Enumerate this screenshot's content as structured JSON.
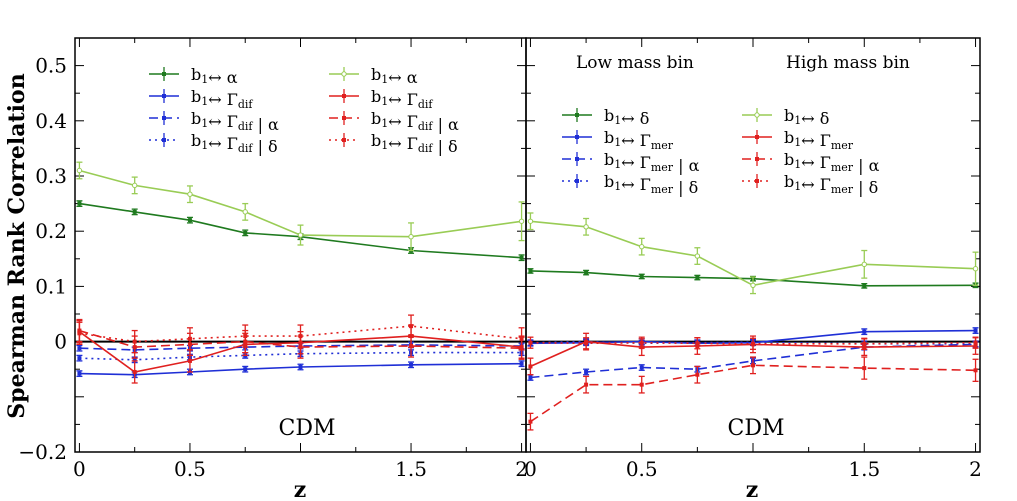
{
  "chart_data": {
    "type": "line",
    "ylabel": "Spearman Rank Correlation",
    "xlabel": "z",
    "ylim": [
      -0.2,
      0.55
    ],
    "xlim": [
      -0.02,
      2.02
    ],
    "y_ticks": [
      {
        "value": 0.5,
        "label": "0.5"
      },
      {
        "value": 0.4,
        "label": "0.4"
      },
      {
        "value": 0.3,
        "label": "0.3"
      },
      {
        "value": 0.2,
        "label": "0.2"
      },
      {
        "value": 0.1,
        "label": "0.1"
      },
      {
        "value": 0,
        "label": "0"
      },
      {
        "value": -0.2,
        "label": "−0.2"
      }
    ],
    "x_ticks": [
      {
        "value": 0,
        "label": "0"
      },
      {
        "value": 0.5,
        "label": "0.5"
      },
      {
        "value": 1.5,
        "label": "1.5"
      },
      {
        "value": 2,
        "label": "2"
      }
    ],
    "x": [
      0,
      0.25,
      0.5,
      0.75,
      1.0,
      1.5,
      2.0
    ],
    "colors": {
      "dark_green": "#1f7a1f",
      "light_green": "#99cc55",
      "blue": "#1f2fd6",
      "red": "#e0201f"
    },
    "panels": [
      {
        "note": "CDM",
        "mass_labels": [],
        "series": [
          {
            "label_main": "b",
            "label_sub": "1",
            "label_rest": "↔ α",
            "label_sub2": "",
            "label_tail": "",
            "color": "dark_green",
            "dash": "solid",
            "marker": "square",
            "legend_col": 0,
            "legend_row": 0,
            "values": [
              0.25,
              0.235,
              0.22,
              0.197,
              0.19,
              0.165,
              0.152
            ],
            "err": [
              0.005,
              0.005,
              0.005,
              0.005,
              0.005,
              0.005,
              0.005
            ]
          },
          {
            "label_main": "b",
            "label_sub": "1",
            "label_rest": "↔ Γ",
            "label_sub2": "dif",
            "label_tail": "",
            "color": "blue",
            "dash": "solid",
            "marker": "square",
            "legend_col": 0,
            "legend_row": 1,
            "values": [
              -0.058,
              -0.06,
              -0.055,
              -0.05,
              -0.046,
              -0.042,
              -0.04
            ],
            "err": [
              0.005,
              0.005,
              0.005,
              0.005,
              0.005,
              0.005,
              0.005
            ]
          },
          {
            "label_main": "b",
            "label_sub": "1",
            "label_rest": "↔ Γ",
            "label_sub2": "dif",
            "label_tail": "| α",
            "color": "blue",
            "dash": "dashed",
            "marker": "square",
            "legend_col": 0,
            "legend_row": 2,
            "values": [
              -0.012,
              -0.015,
              -0.012,
              -0.01,
              -0.008,
              -0.006,
              -0.008
            ],
            "err": [
              0.005,
              0.005,
              0.005,
              0.005,
              0.005,
              0.005,
              0.005
            ]
          },
          {
            "label_main": "b",
            "label_sub": "1",
            "label_rest": "↔ Γ",
            "label_sub2": "dif",
            "label_tail": "| δ",
            "color": "blue",
            "dash": "dotted",
            "marker": "square",
            "legend_col": 0,
            "legend_row": 3,
            "values": [
              -0.03,
              -0.033,
              -0.028,
              -0.025,
              -0.022,
              -0.02,
              -0.02
            ],
            "err": [
              0.005,
              0.005,
              0.005,
              0.005,
              0.005,
              0.005,
              0.005
            ]
          },
          {
            "label_main": "b",
            "label_sub": "1",
            "label_rest": "↔ α",
            "label_sub2": "",
            "label_tail": "",
            "color": "light_green",
            "dash": "solid",
            "marker": "circle",
            "legend_col": 1,
            "legend_row": 0,
            "values": [
              0.31,
              0.283,
              0.267,
              0.235,
              0.193,
              0.19,
              0.218
            ],
            "err": [
              0.015,
              0.015,
              0.015,
              0.015,
              0.018,
              0.025,
              0.035
            ]
          },
          {
            "label_main": "b",
            "label_sub": "1",
            "label_rest": "↔ Γ",
            "label_sub2": "dif",
            "label_tail": "",
            "color": "red",
            "dash": "solid",
            "marker": "square",
            "legend_col": 1,
            "legend_row": 1,
            "values": [
              0.018,
              -0.055,
              -0.035,
              -0.005,
              -0.002,
              0.01,
              -0.01
            ],
            "err": [
              0.02,
              0.02,
              0.02,
              0.02,
              0.02,
              0.02,
              0.02
            ]
          },
          {
            "label_main": "b",
            "label_sub": "1",
            "label_rest": "↔ Γ",
            "label_sub2": "dif",
            "label_tail": "| α",
            "color": "red",
            "dash": "dashed",
            "marker": "square",
            "legend_col": 1,
            "legend_row": 2,
            "values": [
              0.02,
              -0.01,
              -0.005,
              0.0,
              -0.01,
              -0.008,
              -0.012
            ],
            "err": [
              0.02,
              0.02,
              0.02,
              0.02,
              0.02,
              0.02,
              0.02
            ]
          },
          {
            "label_main": "b",
            "label_sub": "1",
            "label_rest": "↔ Γ",
            "label_sub2": "dif",
            "label_tail": "| δ",
            "color": "red",
            "dash": "dotted",
            "marker": "square",
            "legend_col": 1,
            "legend_row": 3,
            "values": [
              0.015,
              0.0,
              0.005,
              0.01,
              0.01,
              0.028,
              0.005
            ],
            "err": [
              0.02,
              0.02,
              0.02,
              0.02,
              0.02,
              0.02,
              0.02
            ]
          }
        ]
      },
      {
        "note": "CDM",
        "mass_labels": [
          "Low mass bin",
          "High mass bin"
        ],
        "series": [
          {
            "label_main": "b",
            "label_sub": "1",
            "label_rest": "↔ δ",
            "label_sub2": "",
            "label_tail": "",
            "color": "dark_green",
            "dash": "solid",
            "marker": "square",
            "legend_col": 0,
            "legend_row": 0,
            "values": [
              0.128,
              0.125,
              0.118,
              0.116,
              0.114,
              0.101,
              0.102
            ],
            "err": [
              0.004,
              0.004,
              0.004,
              0.004,
              0.004,
              0.004,
              0.004
            ]
          },
          {
            "label_main": "b",
            "label_sub": "1",
            "label_rest": "↔ Γ",
            "label_sub2": "mer",
            "label_tail": "",
            "color": "blue",
            "dash": "solid",
            "marker": "square",
            "legend_col": 0,
            "legend_row": 1,
            "values": [
              -0.003,
              -0.002,
              0.0,
              -0.003,
              -0.002,
              0.018,
              0.02
            ],
            "err": [
              0.005,
              0.005,
              0.005,
              0.005,
              0.005,
              0.005,
              0.005
            ]
          },
          {
            "label_main": "b",
            "label_sub": "1",
            "label_rest": "↔ Γ",
            "label_sub2": "mer",
            "label_tail": "| α",
            "color": "blue",
            "dash": "dashed",
            "marker": "square",
            "legend_col": 0,
            "legend_row": 2,
            "values": [
              -0.065,
              -0.055,
              -0.047,
              -0.05,
              -0.035,
              -0.01,
              -0.005
            ],
            "err": [
              0.005,
              0.005,
              0.005,
              0.005,
              0.005,
              0.005,
              0.005
            ]
          },
          {
            "label_main": "b",
            "label_sub": "1",
            "label_rest": "↔ Γ",
            "label_sub2": "mer",
            "label_tail": "| δ",
            "color": "blue",
            "dash": "dotted",
            "marker": "square",
            "legend_col": 0,
            "legend_row": 3,
            "values": [
              -0.002,
              0.0,
              -0.003,
              -0.002,
              -0.001,
              -0.004,
              -0.004
            ],
            "err": [
              0.005,
              0.005,
              0.005,
              0.005,
              0.005,
              0.005,
              0.005
            ]
          },
          {
            "label_main": "b",
            "label_sub": "1",
            "label_rest": "↔ δ",
            "label_sub2": "",
            "label_tail": "",
            "color": "light_green",
            "dash": "solid",
            "marker": "circle",
            "legend_col": 1,
            "legend_row": 0,
            "values": [
              0.218,
              0.208,
              0.172,
              0.155,
              0.102,
              0.14,
              0.132
            ],
            "err": [
              0.015,
              0.015,
              0.015,
              0.015,
              0.015,
              0.025,
              0.03
            ]
          },
          {
            "label_main": "b",
            "label_sub": "1",
            "label_rest": "↔ Γ",
            "label_sub2": "mer",
            "label_tail": "",
            "color": "red",
            "dash": "solid",
            "marker": "square",
            "legend_col": 1,
            "legend_row": 1,
            "values": [
              -0.045,
              0.0,
              -0.01,
              -0.008,
              -0.005,
              -0.01,
              -0.008
            ],
            "err": [
              0.015,
              0.015,
              0.015,
              0.015,
              0.015,
              0.015,
              0.015
            ]
          },
          {
            "label_main": "b",
            "label_sub": "1",
            "label_rest": "↔ Γ",
            "label_sub2": "mer",
            "label_tail": "| α",
            "color": "red",
            "dash": "dashed",
            "marker": "square",
            "legend_col": 1,
            "legend_row": 2,
            "values": [
              -0.145,
              -0.078,
              -0.078,
              -0.06,
              -0.043,
              -0.048,
              -0.052
            ],
            "err": [
              0.015,
              0.015,
              0.015,
              0.015,
              0.015,
              0.02,
              0.02
            ]
          },
          {
            "label_main": "b",
            "label_sub": "1",
            "label_rest": "↔ Γ",
            "label_sub2": "mer",
            "label_tail": "| δ",
            "color": "red",
            "dash": "dotted",
            "marker": "square",
            "legend_col": 1,
            "legend_row": 3,
            "values": [
              -0.002,
              -0.003,
              -0.002,
              -0.003,
              -0.004,
              -0.004,
              -0.002
            ],
            "err": [
              0.01,
              0.01,
              0.01,
              0.01,
              0.01,
              0.01,
              0.01
            ]
          }
        ]
      }
    ]
  }
}
